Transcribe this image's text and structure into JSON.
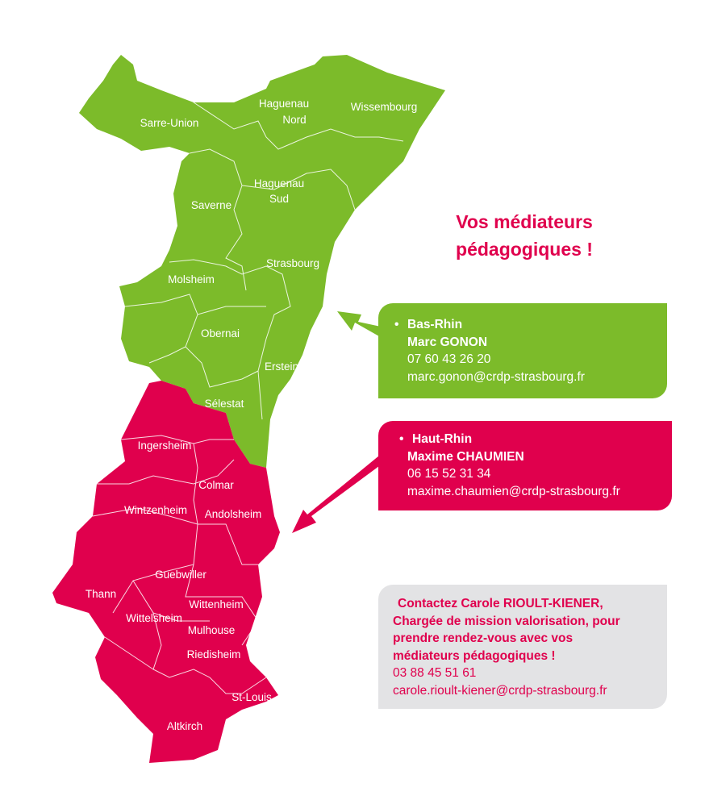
{
  "colors": {
    "bas_rhin": "#7cbb2a",
    "haut_rhin": "#e0004d",
    "contact_box": "#e3e3e5",
    "accent": "#e0004d"
  },
  "title": {
    "line1": "Vos médiateurs",
    "line2": "pédagogiques !"
  },
  "map": {
    "bas_rhin_districts": [
      "Sarre-Union",
      "Haguenau",
      "Nord",
      "Wissembourg",
      "Haguenau",
      "Sud",
      "Saverne",
      "Strasbourg",
      "Molsheim",
      "Obernai",
      "Erstein",
      "Sélestat"
    ],
    "haut_rhin_districts": [
      "Ingersheim",
      "Colmar",
      "Wintzenheim",
      "Andolsheim",
      "Guebwiller",
      "Thann",
      "Wittenheim",
      "Wittelsheim",
      "Mulhouse",
      "Riedisheim",
      "St-Louis",
      "Altkirch"
    ]
  },
  "bas_rhin": {
    "region": "Bas-Rhin",
    "name": "Marc GONON",
    "phone": "07 60 43 26 20",
    "email": "marc.gonon@crdp-strasbourg.fr"
  },
  "haut_rhin": {
    "region": "Haut-Rhin",
    "name": "Maxime CHAUMIEN",
    "phone": "06 15 52 31 34",
    "email": "maxime.chaumien@crdp-strasbourg.fr"
  },
  "contact": {
    "line1": "Contactez Carole RIOULT-KIENER,",
    "line2": "Chargée de mission valorisation, pour",
    "line3": "prendre rendez-vous avec vos",
    "line4": "médiateurs pédagogiques !",
    "phone": "03 88 45 51 61",
    "email": "carole.rioult-kiener@crdp-strasbourg.fr"
  }
}
